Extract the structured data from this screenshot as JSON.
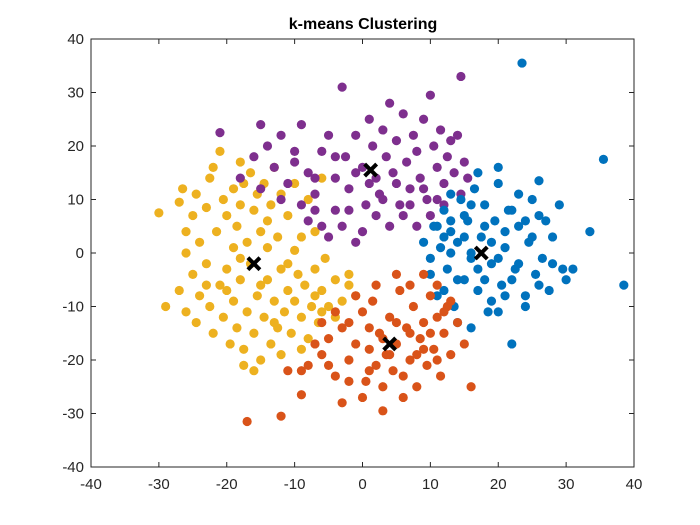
{
  "chart_data": {
    "type": "scatter",
    "title": "k-means Clustering",
    "xlabel": "",
    "ylabel": "",
    "xlim": [
      -40,
      40
    ],
    "ylim": [
      -40,
      40
    ],
    "xticks": [
      -40,
      -30,
      -20,
      -10,
      0,
      10,
      20,
      30,
      40
    ],
    "yticks": [
      -40,
      -30,
      -20,
      -10,
      0,
      10,
      20,
      30,
      40
    ],
    "grid": false,
    "series": [
      {
        "color": "#EDB120",
        "points": [
          [
            -30,
            7.5
          ],
          [
            -27,
            9.5
          ],
          [
            -26.5,
            12
          ],
          [
            -26,
            4
          ],
          [
            -25,
            7
          ],
          [
            -24.5,
            11
          ],
          [
            -24,
            2
          ],
          [
            -23,
            8.5
          ],
          [
            -22.5,
            14
          ],
          [
            -21.5,
            4
          ],
          [
            -21,
            19
          ],
          [
            -20.5,
            10
          ],
          [
            -20,
            7
          ],
          [
            -19,
            12
          ],
          [
            -18.5,
            5
          ],
          [
            -18,
            9
          ],
          [
            -17.5,
            13
          ],
          [
            -17,
            2
          ],
          [
            -16.5,
            15
          ],
          [
            -16,
            8
          ],
          [
            -15.5,
            11
          ],
          [
            -15,
            4
          ],
          [
            -14.5,
            13
          ],
          [
            -14,
            6
          ],
          [
            -13.5,
            9
          ],
          [
            -13,
            16
          ],
          [
            -12.5,
            3
          ],
          [
            -12,
            11
          ],
          [
            -11,
            7
          ],
          [
            -10,
            13
          ],
          [
            -9,
            3
          ],
          [
            -8,
            10
          ],
          [
            -7,
            4
          ],
          [
            -6,
            14
          ],
          [
            -18,
            17
          ],
          [
            -22,
            16
          ],
          [
            -26,
            0
          ],
          [
            -14,
            1
          ],
          [
            -10,
            0.5
          ],
          [
            -19,
            1
          ],
          [
            -29,
            -10
          ],
          [
            -27,
            -7
          ],
          [
            -26,
            -11
          ],
          [
            -25,
            -4
          ],
          [
            -24.5,
            -13
          ],
          [
            -24,
            -8
          ],
          [
            -23,
            -2
          ],
          [
            -22.5,
            -10
          ],
          [
            -22,
            -15
          ],
          [
            -21,
            -6
          ],
          [
            -20.5,
            -12
          ],
          [
            -20,
            -3
          ],
          [
            -19.5,
            -17
          ],
          [
            -19,
            -9
          ],
          [
            -18.5,
            -14
          ],
          [
            -18,
            -5
          ],
          [
            -17.5,
            -18
          ],
          [
            -17,
            -11
          ],
          [
            -16.5,
            -2
          ],
          [
            -16,
            -15
          ],
          [
            -15.5,
            -8
          ],
          [
            -15,
            -20
          ],
          [
            -14.5,
            -12
          ],
          [
            -14,
            -5
          ],
          [
            -13.5,
            -17
          ],
          [
            -13,
            -9
          ],
          [
            -12.5,
            -14
          ],
          [
            -12,
            -3
          ],
          [
            -11.5,
            -11
          ],
          [
            -11,
            -7
          ],
          [
            -10.5,
            -15
          ],
          [
            -10,
            -9
          ],
          [
            -9.5,
            -4
          ],
          [
            -9,
            -12
          ],
          [
            -8.5,
            -6
          ],
          [
            -8,
            -16
          ],
          [
            -7.5,
            -10
          ],
          [
            -7,
            -3
          ],
          [
            -6.5,
            -13
          ],
          [
            -6,
            -7
          ],
          [
            -5,
            -10
          ],
          [
            -4,
            -5
          ],
          [
            -3,
            -9
          ],
          [
            -2,
            -4
          ],
          [
            -1,
            -8
          ],
          [
            -5.5,
            -1
          ],
          [
            -17.5,
            -21
          ],
          [
            -16,
            -22
          ],
          [
            -12,
            -19
          ],
          [
            -9,
            -18
          ],
          [
            -20,
            -7
          ],
          [
            -23,
            -6
          ],
          [
            -13,
            -13
          ],
          [
            -11,
            -2
          ],
          [
            -7,
            -8
          ],
          [
            -4,
            -12
          ],
          [
            -18,
            -1
          ],
          [
            -15,
            -6
          ],
          [
            -6,
            -11
          ],
          [
            -2,
            -6
          ]
        ]
      },
      {
        "color": "#7E2F8E",
        "points": [
          [
            -21,
            22.5
          ],
          [
            -18,
            14
          ],
          [
            -16,
            18
          ],
          [
            -15,
            24
          ],
          [
            -14,
            20
          ],
          [
            -13,
            16
          ],
          [
            -12,
            22
          ],
          [
            -11,
            13
          ],
          [
            -10,
            19
          ],
          [
            -9,
            24
          ],
          [
            -8,
            15
          ],
          [
            -7,
            11
          ],
          [
            -6,
            19
          ],
          [
            -5,
            22
          ],
          [
            -4,
            14
          ],
          [
            -3,
            31
          ],
          [
            -2.5,
            18
          ],
          [
            -2,
            12
          ],
          [
            -1,
            22
          ],
          [
            0,
            16
          ],
          [
            0.5,
            9
          ],
          [
            1,
            25
          ],
          [
            1.5,
            20
          ],
          [
            2,
            14
          ],
          [
            2.5,
            11
          ],
          [
            3,
            23
          ],
          [
            3.5,
            18
          ],
          [
            4,
            28
          ],
          [
            4.5,
            15
          ],
          [
            5,
            21
          ],
          [
            5.5,
            9
          ],
          [
            6,
            26
          ],
          [
            6.5,
            17
          ],
          [
            7,
            12
          ],
          [
            7.5,
            22
          ],
          [
            8,
            19
          ],
          [
            8.5,
            14
          ],
          [
            9,
            25
          ],
          [
            9.5,
            10
          ],
          [
            10,
            29.5
          ],
          [
            10.5,
            20
          ],
          [
            11,
            16
          ],
          [
            11.5,
            23
          ],
          [
            12,
            13
          ],
          [
            12.5,
            18
          ],
          [
            13,
            21
          ],
          [
            13.5,
            15
          ],
          [
            14,
            22
          ],
          [
            14.5,
            11
          ],
          [
            15,
            17
          ],
          [
            15.5,
            14
          ],
          [
            14.5,
            33
          ],
          [
            -8,
            6
          ],
          [
            -6,
            5
          ],
          [
            -4,
            8
          ],
          [
            -2,
            8
          ],
          [
            0,
            4
          ],
          [
            -1,
            2
          ],
          [
            -3,
            5
          ],
          [
            -5,
            3
          ],
          [
            -15,
            12
          ],
          [
            -12,
            10
          ],
          [
            -9,
            9
          ],
          [
            -7,
            8
          ],
          [
            2,
            7
          ],
          [
            4,
            5
          ],
          [
            6,
            7
          ],
          [
            8,
            5
          ],
          [
            10,
            7
          ],
          [
            12,
            9
          ],
          [
            1,
            13
          ],
          [
            3,
            10
          ],
          [
            5,
            13
          ],
          [
            7,
            9
          ],
          [
            9,
            12
          ],
          [
            11,
            10
          ],
          [
            -10,
            17
          ],
          [
            -7,
            14
          ],
          [
            -4,
            18
          ],
          [
            -1,
            15
          ]
        ]
      },
      {
        "color": "#0072BD",
        "points": [
          [
            9,
            2
          ],
          [
            10,
            -4
          ],
          [
            10.5,
            5
          ],
          [
            11,
            -8
          ],
          [
            11.5,
            1
          ],
          [
            12,
            8
          ],
          [
            12.5,
            -3
          ],
          [
            13,
            4
          ],
          [
            13.5,
            -10
          ],
          [
            14,
            2
          ],
          [
            14.5,
            10
          ],
          [
            15,
            -5
          ],
          [
            15.5,
            6
          ],
          [
            16,
            -1
          ],
          [
            16.5,
            12
          ],
          [
            17,
            -7
          ],
          [
            17.5,
            3
          ],
          [
            18,
            9
          ],
          [
            18.5,
            -11
          ],
          [
            19,
            -2
          ],
          [
            19.5,
            6
          ],
          [
            20,
            13
          ],
          [
            20.5,
            -6
          ],
          [
            21,
            1
          ],
          [
            21.5,
            8
          ],
          [
            22,
            -17
          ],
          [
            22.5,
            -3
          ],
          [
            23,
            5
          ],
          [
            23.5,
            35.5
          ],
          [
            24,
            -8
          ],
          [
            24.5,
            2
          ],
          [
            25,
            10
          ],
          [
            25.5,
            -4
          ],
          [
            26,
            13.5
          ],
          [
            26.5,
            -1
          ],
          [
            27,
            6
          ],
          [
            27.5,
            -7
          ],
          [
            28,
            3
          ],
          [
            29,
            9
          ],
          [
            29.5,
            -3
          ],
          [
            30,
            -5
          ],
          [
            31,
            -3
          ],
          [
            33.5,
            4
          ],
          [
            35.5,
            17.5
          ],
          [
            38.5,
            -6
          ],
          [
            17,
            15
          ],
          [
            20,
            16
          ],
          [
            23,
            11
          ],
          [
            14,
            -13
          ],
          [
            16,
            -14
          ],
          [
            19,
            -9
          ],
          [
            12,
            -7
          ],
          [
            10,
            -1
          ],
          [
            11,
            5
          ],
          [
            13,
            11
          ],
          [
            15,
            7
          ],
          [
            18,
            5
          ],
          [
            21,
            -8
          ],
          [
            23,
            -2
          ],
          [
            25,
            3
          ],
          [
            13,
            0
          ],
          [
            15,
            3
          ],
          [
            17,
            -3
          ],
          [
            19,
            2
          ],
          [
            21,
            4
          ],
          [
            22,
            -5
          ],
          [
            24,
            -10
          ],
          [
            26,
            7
          ],
          [
            28,
            -2
          ],
          [
            12,
            3
          ],
          [
            14,
            -5
          ],
          [
            16,
            9
          ],
          [
            18,
            -5
          ],
          [
            20,
            -1
          ],
          [
            22,
            8
          ],
          [
            24,
            6
          ],
          [
            26,
            -6
          ],
          [
            20,
            -11
          ],
          [
            16,
            0
          ],
          [
            13,
            6
          ]
        ]
      },
      {
        "color": "#D95319",
        "points": [
          [
            -9,
            -22
          ],
          [
            -9,
            -26.5
          ],
          [
            -8,
            -21
          ],
          [
            -6,
            -19
          ],
          [
            -5,
            -16
          ],
          [
            -4,
            -23
          ],
          [
            -3,
            -14
          ],
          [
            -2,
            -20
          ],
          [
            -1,
            -17
          ],
          [
            0,
            -11
          ],
          [
            0.5,
            -24
          ],
          [
            1,
            -18
          ],
          [
            1.5,
            -9
          ],
          [
            2,
            -21
          ],
          [
            2.5,
            -15
          ],
          [
            3,
            -29.5
          ],
          [
            3.5,
            -19
          ],
          [
            4,
            -12
          ],
          [
            4.5,
            -22
          ],
          [
            5,
            -17
          ],
          [
            5.5,
            -7
          ],
          [
            6,
            -27
          ],
          [
            6.5,
            -14
          ],
          [
            7,
            -20
          ],
          [
            7.5,
            -10
          ],
          [
            8,
            -25
          ],
          [
            8.5,
            -16
          ],
          [
            9,
            -13
          ],
          [
            9.5,
            -21
          ],
          [
            10,
            -8
          ],
          [
            10.5,
            -18
          ],
          [
            11,
            -12
          ],
          [
            11.5,
            -23
          ],
          [
            12,
            -15
          ],
          [
            12.5,
            -10
          ],
          [
            13,
            -19
          ],
          [
            14,
            -13
          ],
          [
            15,
            -17
          ],
          [
            16,
            -25
          ],
          [
            -3,
            -28
          ],
          [
            -7,
            -17
          ],
          [
            -4,
            -11
          ],
          [
            -1,
            -8
          ],
          [
            2,
            -6
          ],
          [
            5,
            -4
          ],
          [
            7,
            -6
          ],
          [
            9,
            -4
          ],
          [
            11,
            -6
          ],
          [
            13,
            -9
          ],
          [
            -11,
            -22
          ],
          [
            -12,
            -30.5
          ],
          [
            -17,
            -31.5
          ],
          [
            0,
            -27
          ],
          [
            3,
            -25
          ],
          [
            6,
            -23
          ],
          [
            8,
            -19
          ],
          [
            10,
            -15
          ],
          [
            12,
            -11
          ],
          [
            -2,
            -13
          ],
          [
            -6,
            -13
          ],
          [
            1,
            -14
          ],
          [
            3,
            -16
          ],
          [
            5,
            -13
          ],
          [
            7,
            -15
          ],
          [
            9,
            -18
          ],
          [
            11,
            -20
          ],
          [
            -5,
            -21
          ],
          [
            -2,
            -24
          ],
          [
            1,
            -22
          ],
          [
            4,
            -19
          ]
        ]
      },
      {
        "color": "#000000",
        "marker": "x",
        "points": [
          [
            -16,
            -2
          ],
          [
            1.2,
            15.5
          ],
          [
            17.5,
            0
          ],
          [
            4,
            -17
          ]
        ]
      }
    ]
  }
}
